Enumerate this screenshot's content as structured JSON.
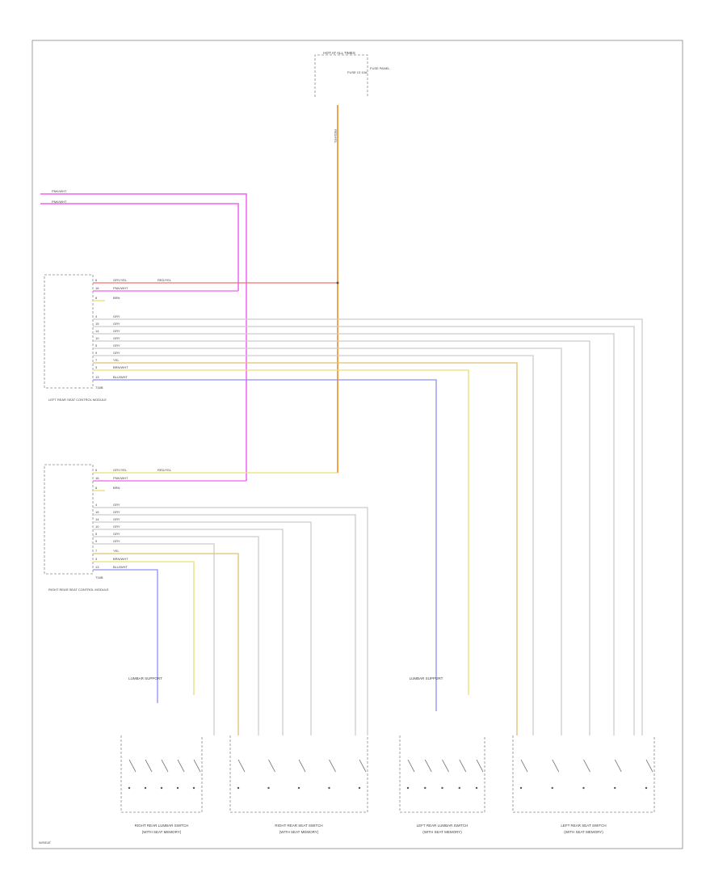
{
  "fuse_block": {
    "title": "HOT AT ALL TIMES",
    "fuse": "FUSE 13 10A",
    "box": "FUSE PANEL"
  },
  "modules": [
    {
      "label": "LEFT REAR SEAT CONTROL MODULE",
      "connector": "T16B",
      "pins": [
        {
          "pin": "6",
          "wire": "GRY/YEL"
        },
        {
          "pin": "16",
          "wire": "PNK/WHT"
        },
        {
          "pin": "8",
          "wire": "BRN"
        },
        {
          "pin": "4",
          "wire": "GRY"
        },
        {
          "pin": "15",
          "wire": "GRY"
        },
        {
          "pin": "14",
          "wire": "GRY"
        },
        {
          "pin": "10",
          "wire": "GRY"
        },
        {
          "pin": "5",
          "wire": "GRY"
        },
        {
          "pin": "9",
          "wire": "GRY"
        },
        {
          "pin": "7",
          "wire": "YEL"
        },
        {
          "pin": "3",
          "wire": "BRN/WHT"
        },
        {
          "pin": "13",
          "wire": "BLU/WHT"
        }
      ]
    },
    {
      "label": "RIGHT REAR SEAT CONTROL MODULE",
      "connector": "T16B",
      "pins": [
        {
          "pin": "6",
          "wire": "GRY/YEL"
        },
        {
          "pin": "16",
          "wire": "PNK/WHT"
        },
        {
          "pin": "8",
          "wire": "BRN"
        },
        {
          "pin": "4",
          "wire": "GRY"
        },
        {
          "pin": "15",
          "wire": "GRY"
        },
        {
          "pin": "14",
          "wire": "GRY"
        },
        {
          "pin": "10",
          "wire": "GRY"
        },
        {
          "pin": "5",
          "wire": "GRY"
        },
        {
          "pin": "9",
          "wire": "GRY"
        },
        {
          "pin": "7",
          "wire": "YEL"
        },
        {
          "pin": "3",
          "wire": "BRN/WHT"
        },
        {
          "pin": "13",
          "wire": "BLU/WHT"
        }
      ]
    }
  ],
  "splice_labels": [
    "RED/YEL",
    "RED/YEL"
  ],
  "top_wires": [
    "PNK/WHT",
    "PNK/WHT"
  ],
  "feed_wire": "RED/YEL",
  "components": [
    {
      "label": "RIGHT REAR LUMBAR SWITCH",
      "sub": "(WITH SEAT MEMORY)",
      "note": "LUMBAR SUPPORT"
    },
    {
      "label": "RIGHT REAR SEAT SWITCH",
      "sub": "(WITH SEAT MEMORY)"
    },
    {
      "label": "LEFT REAR LUMBAR SWITCH",
      "sub": "(WITH SEAT MEMORY)",
      "note": "LUMBAR SUPPORT"
    },
    {
      "label": "LEFT REAR SEAT SWITCH",
      "sub": "(WITH SEAT MEMORY)"
    }
  ],
  "footer": "W/SEAT"
}
